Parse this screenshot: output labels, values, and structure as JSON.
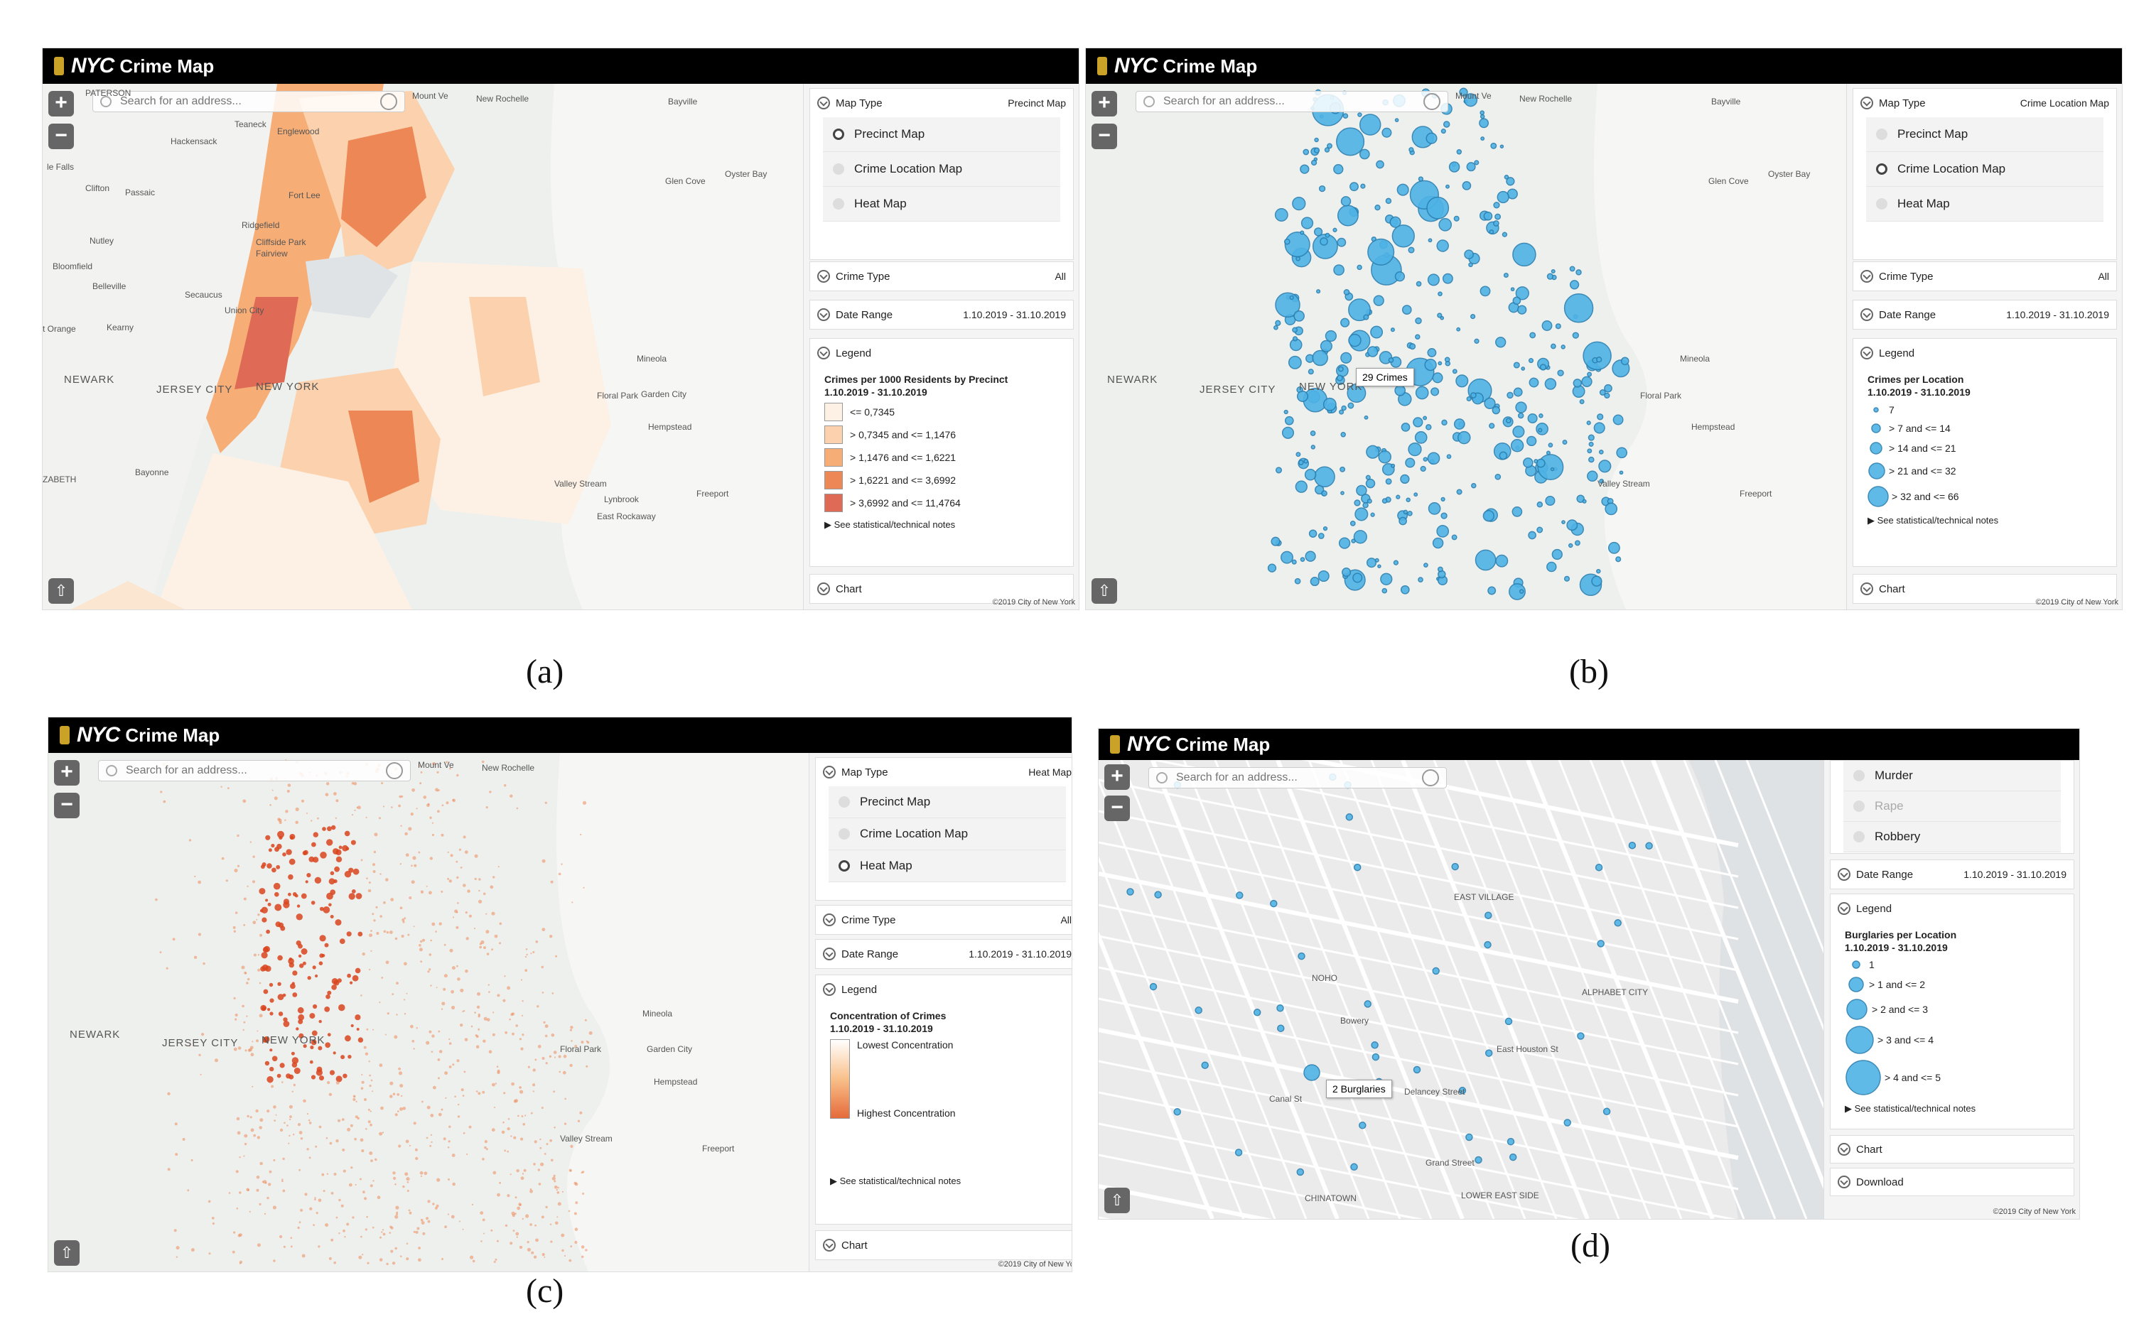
{
  "app": {
    "logo": "NYC",
    "title": "Crime Map",
    "search_placeholder": "Search for an address...",
    "copyright": "©2019 City of New York",
    "notes": "See statistical/technical notes"
  },
  "map_type_options": [
    "Precinct Map",
    "Crime Location Map",
    "Heat Map"
  ],
  "labels": {
    "map_type": "Map Type",
    "crime_type": "Crime Type",
    "date_range": "Date Range",
    "legend": "Legend",
    "chart": "Chart",
    "download": "Download",
    "all": "All",
    "range": "1.10.2019 - 31.10.2019"
  },
  "places": {
    "newark": "NEWARK",
    "jersey_city": "JERSEY CITY",
    "new_york": "NEW YORK",
    "mount_vernon": "Mount Ve",
    "new_rochelle": "New Rochelle",
    "teaneck": "Teaneck",
    "englewood": "Englewood",
    "hackensack": "Hackensack",
    "fort_lee": "Fort Lee",
    "clifton": "Clifton",
    "passaic": "Passaic",
    "nutley": "Nutley",
    "bloomfield": "Bloomfield",
    "belleville": "Belleville",
    "secaucus": "Secaucus",
    "union_city": "Union City",
    "kearny": "Kearny",
    "ridgefield": "Ridgefield",
    "cliffside": "Cliffside Park",
    "fairview": "Fairview",
    "mineola": "Mineola",
    "floral_park": "Floral Park",
    "garden_city": "Garden City",
    "hempstead": "Hempstead",
    "bayonne": "Bayonne",
    "valley_stream": "Valley Stream",
    "lynbrook": "Lynbrook",
    "freeport": "Freeport",
    "east_rockaway": "East Rockaway",
    "bayville": "Bayville",
    "oyster_bay": "Oyster Bay",
    "glen_cove": "Glen Cove",
    "paterson": "PATERSON",
    "falls": "le Falls",
    "orange": "t Orange",
    "zabeth": "ZABETH"
  },
  "panel_a": {
    "caption": "(a)",
    "selected": "Precinct Map",
    "legend_title": "Crimes per 1000 Residents by Precinct\n1.10.2019 - 31.10.2019",
    "legend": [
      {
        "label": "<= 0,7345",
        "color": "#fdf1e6"
      },
      {
        "label": "> 0,7345 and <= 1,1476",
        "color": "#fbd2ad"
      },
      {
        "label": "> 1,1476 and <= 1,6221",
        "color": "#f7ad76"
      },
      {
        "label": "> 1,6221 and <= 3,6992",
        "color": "#ee8756"
      },
      {
        "label": "> 3,6992 and <= 11,4764",
        "color": "#df6a55"
      }
    ]
  },
  "panel_b": {
    "caption": "(b)",
    "selected": "Crime Location Map",
    "legend_title": "Crimes per Location\n1.10.2019 - 31.10.2019",
    "tooltip": "29 Crimes",
    "legend": [
      "7",
      "> 7 and <= 14",
      "> 14 and <= 21",
      "> 21 and <= 32",
      "> 32 and <= 66"
    ]
  },
  "panel_c": {
    "caption": "(c)",
    "selected": "Heat Map",
    "legend_title": "Concentration of Crimes\n1.10.2019 - 31.10.2019",
    "low": "Lowest Concentration",
    "high": "Highest Concentration"
  },
  "panel_d": {
    "caption": "(d)",
    "crime_options": [
      "Murder",
      "Rape",
      "Robbery"
    ],
    "legend_title": "Burglaries per Location\n1.10.2019 - 31.10.2019",
    "tooltip": "2 Burglaries",
    "legend": [
      "1",
      "> 1 and <= 2",
      "> 2 and <= 3",
      "> 3 and <= 4",
      "> 4 and <= 5"
    ],
    "streets": {
      "noho": "NOHO",
      "east_village": "EAST VILLAGE",
      "alphabet_city": "ALPHABET CITY",
      "chinatown": "CHINATOWN",
      "lower_east_side": "LOWER EAST SIDE",
      "houston": "East Houston St",
      "bowery": "Bowery",
      "delancey": "Delancey Street",
      "grand": "Grand Street",
      "canal": "Canal St"
    }
  },
  "colors": {
    "accent_bubble": "#4fb3e6",
    "titlebar": "#000000",
    "heat": "#e2552b"
  }
}
